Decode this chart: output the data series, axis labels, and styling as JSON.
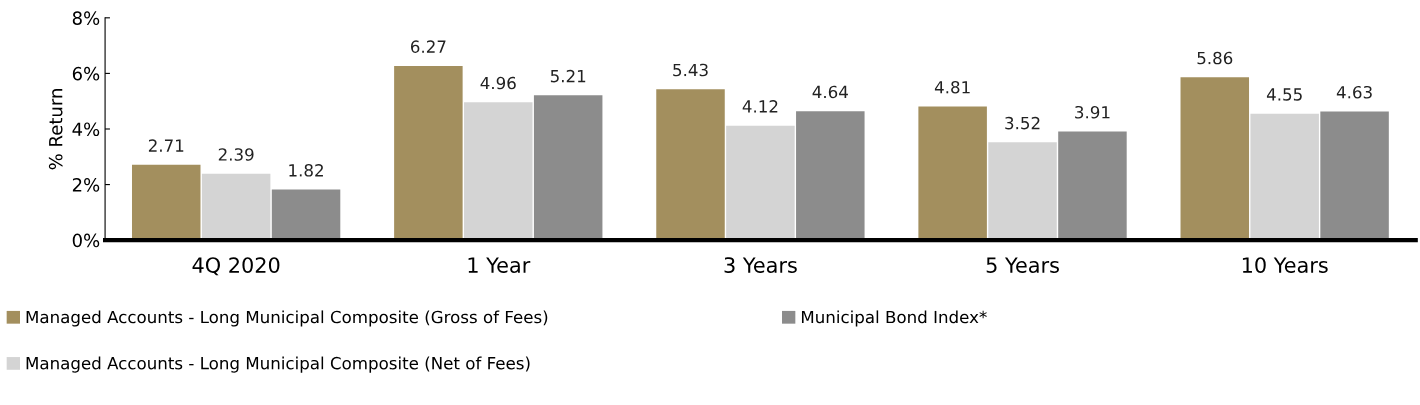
{
  "chart_data": {
    "type": "bar",
    "ylabel": "% Return",
    "categories": [
      "4Q 2020",
      "1 Year",
      "3 Years",
      "5 Years",
      "10 Years"
    ],
    "series": [
      {
        "name": "Managed Accounts - Long Municipal Composite (Gross of Fees)",
        "color": "#a38f5e",
        "values": [
          2.71,
          6.27,
          5.43,
          4.81,
          5.86
        ]
      },
      {
        "name": "Managed Accounts - Long Municipal Composite (Net of Fees)",
        "color": "#d4d4d4",
        "values": [
          2.39,
          4.96,
          4.12,
          3.52,
          4.55
        ]
      },
      {
        "name": "Municipal Bond Index*",
        "color": "#8c8c8c",
        "values": [
          1.82,
          5.21,
          4.64,
          3.91,
          4.63
        ]
      }
    ],
    "ylim": [
      0,
      8
    ],
    "yticks": [
      {
        "value": 0,
        "label": "0%"
      },
      {
        "value": 2,
        "label": "2%"
      },
      {
        "value": 4,
        "label": "4%"
      },
      {
        "value": 6,
        "label": "6%"
      },
      {
        "value": 8,
        "label": "8%"
      }
    ],
    "data_labels": true,
    "grid": false,
    "legend": "bottom"
  }
}
